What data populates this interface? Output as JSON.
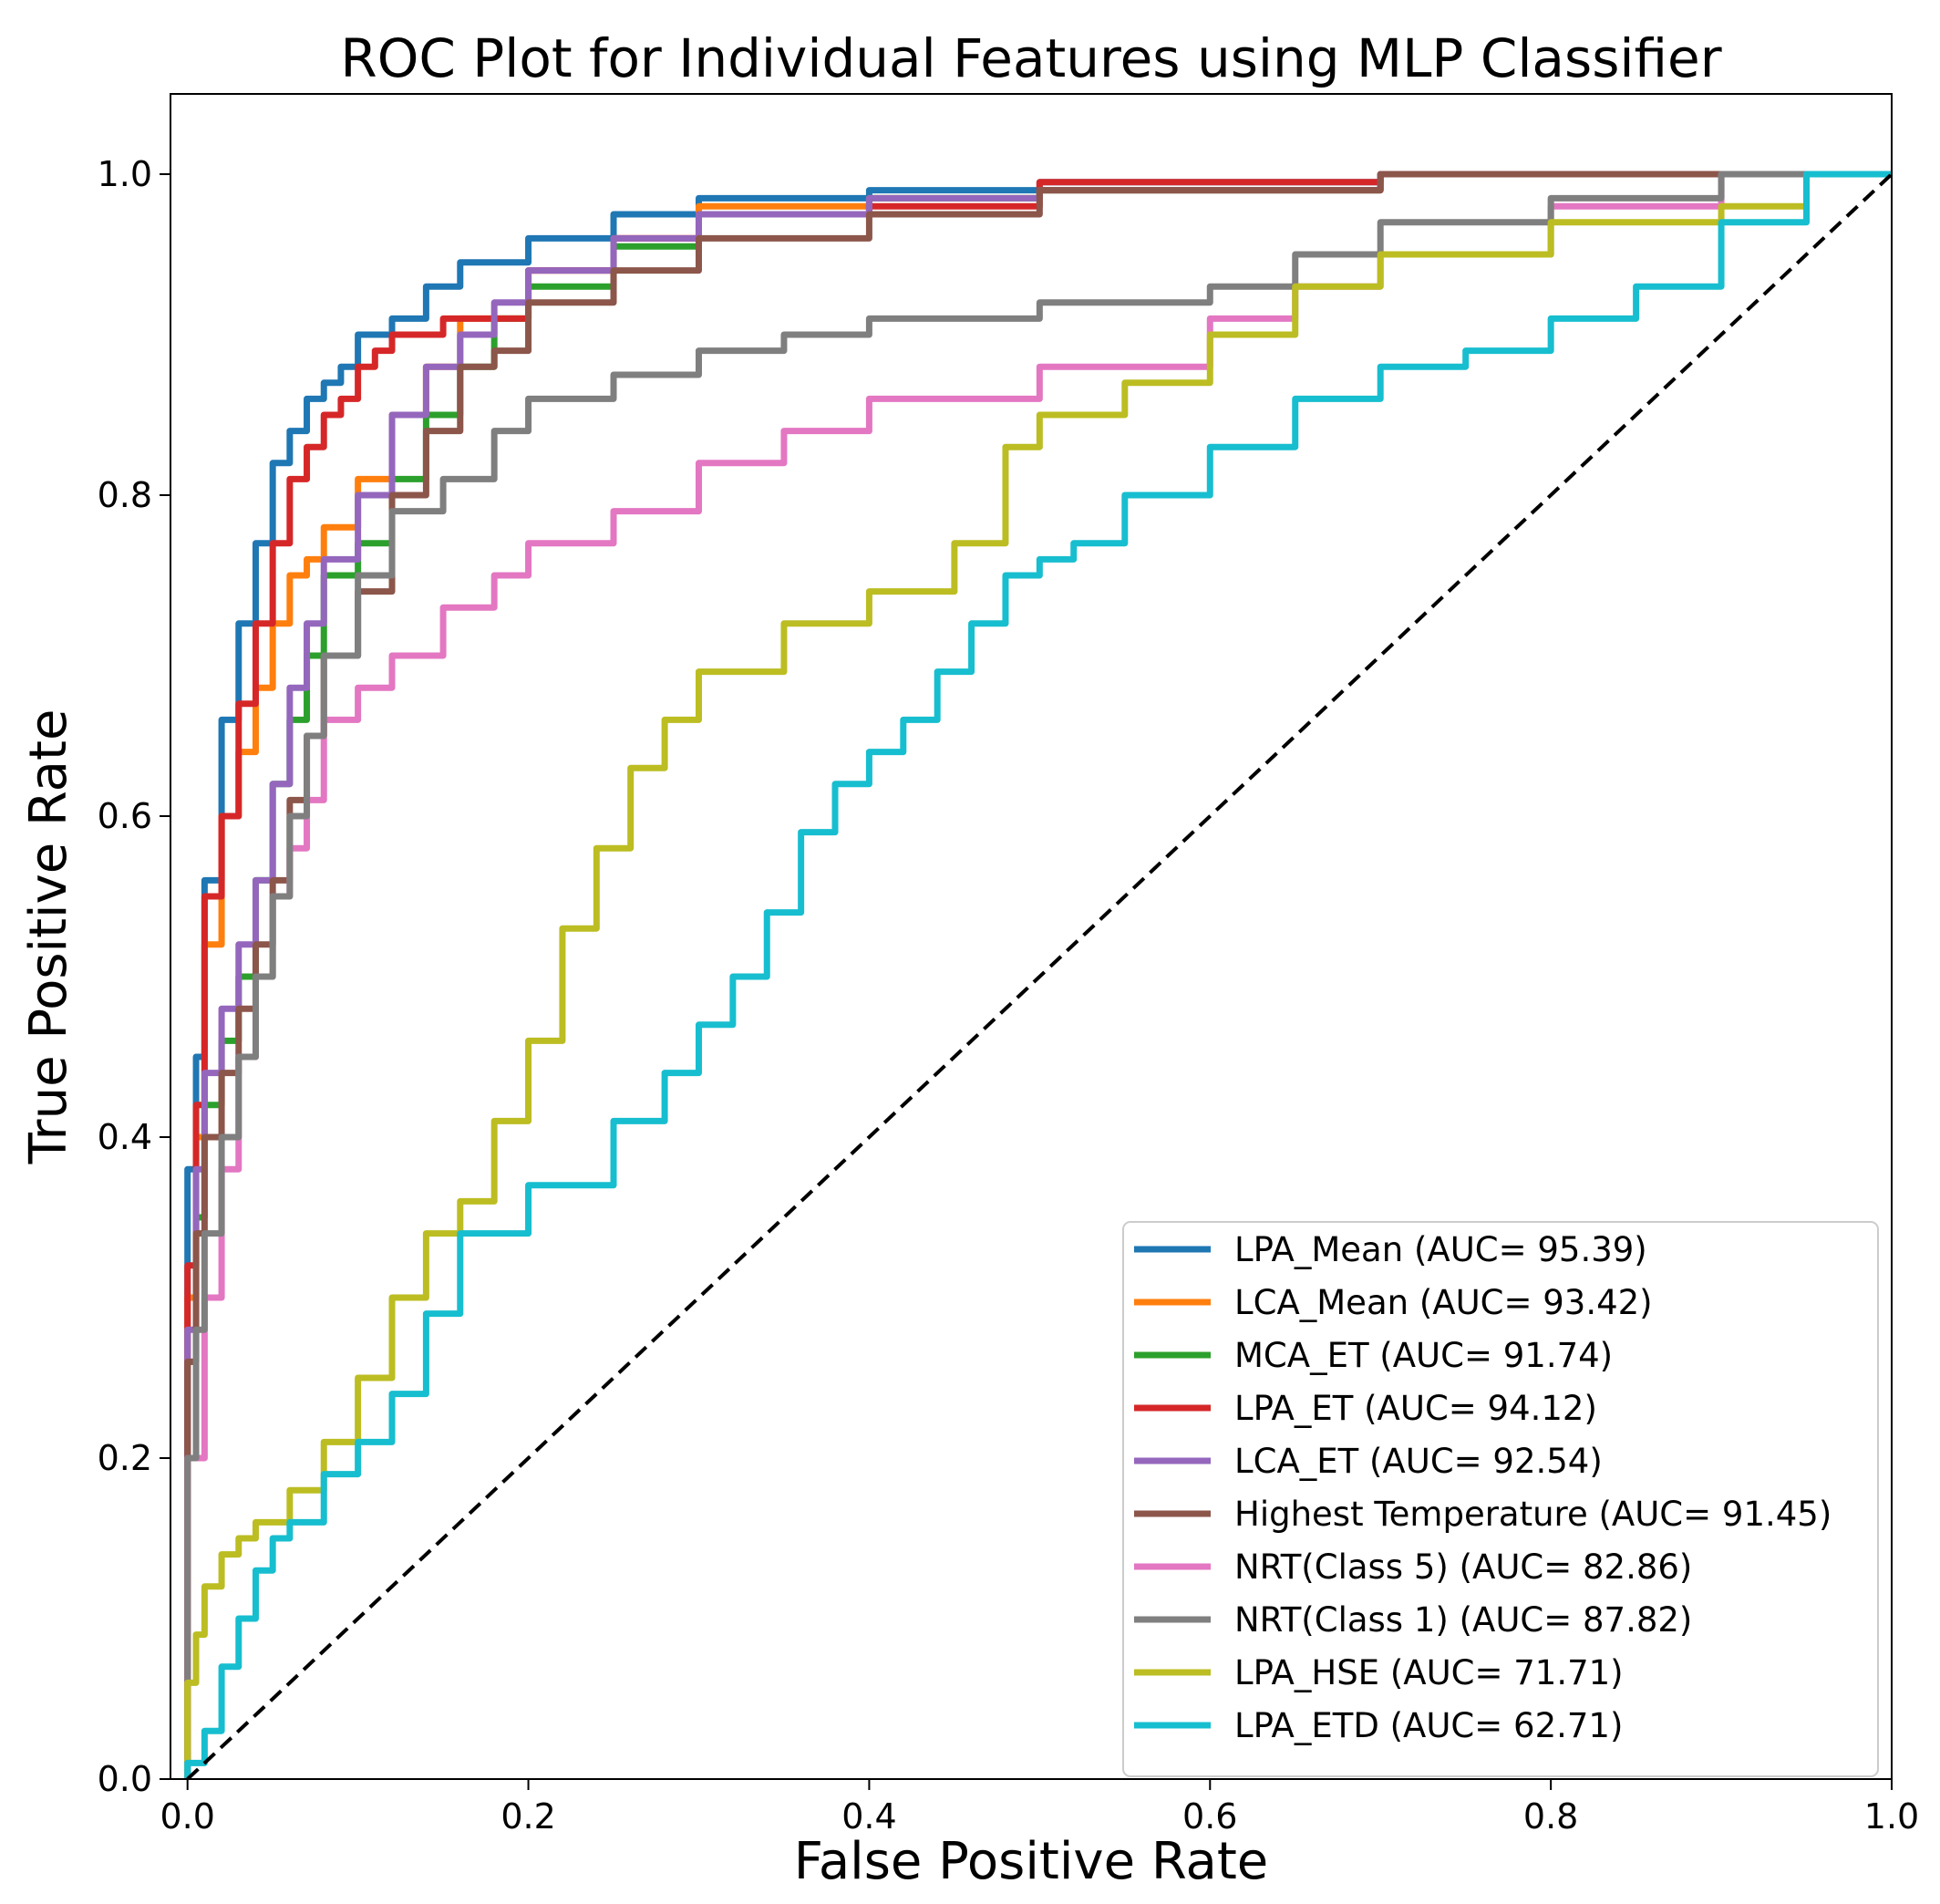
{
  "chart_data": {
    "type": "line",
    "title": "ROC Plot for Individual Features using MLP Classifier",
    "xlabel": "False Positive Rate",
    "ylabel": "True Positive Rate",
    "xlim": [
      -0.01,
      1.0
    ],
    "ylim": [
      0.0,
      1.05
    ],
    "xticks": [
      0.0,
      0.2,
      0.4,
      0.6,
      0.8,
      1.0
    ],
    "xtick_labels": [
      "0.0",
      "0.2",
      "0.4",
      "0.6",
      "0.8",
      "1.0"
    ],
    "yticks": [
      0.0,
      0.2,
      0.4,
      0.6,
      0.8,
      1.0
    ],
    "ytick_labels": [
      "0.0",
      "0.2",
      "0.4",
      "0.6",
      "0.8",
      "1.0"
    ],
    "grid": false,
    "legend_position": "bottom-right",
    "baseline": {
      "name": "chance",
      "x": [
        0,
        1
      ],
      "y": [
        0,
        1
      ],
      "style": "dashed",
      "color": "#000000"
    },
    "series": [
      {
        "name": "LPA_Mean",
        "label": "LPA_Mean (AUC= 95.39)",
        "auc": 95.39,
        "color": "#1f77b4",
        "x": [
          0,
          0,
          0.005,
          0.01,
          0.02,
          0.03,
          0.04,
          0.05,
          0.06,
          0.07,
          0.08,
          0.09,
          0.1,
          0.12,
          0.14,
          0.16,
          0.2,
          0.25,
          0.3,
          0.4,
          0.5,
          0.7,
          1.0
        ],
        "y": [
          0,
          0.26,
          0.38,
          0.45,
          0.56,
          0.66,
          0.72,
          0.77,
          0.82,
          0.84,
          0.86,
          0.87,
          0.88,
          0.9,
          0.91,
          0.93,
          0.945,
          0.96,
          0.975,
          0.985,
          0.99,
          0.995,
          1.0
        ]
      },
      {
        "name": "LCA_Mean",
        "label": "LCA_Mean (AUC= 93.42)",
        "auc": 93.42,
        "color": "#ff7f0e",
        "x": [
          0,
          0,
          0.005,
          0.01,
          0.02,
          0.03,
          0.04,
          0.05,
          0.06,
          0.07,
          0.08,
          0.1,
          0.12,
          0.14,
          0.16,
          0.2,
          0.25,
          0.3,
          0.4,
          0.5,
          0.7,
          1.0
        ],
        "y": [
          0,
          0.2,
          0.3,
          0.4,
          0.52,
          0.6,
          0.64,
          0.68,
          0.72,
          0.75,
          0.76,
          0.78,
          0.81,
          0.85,
          0.88,
          0.91,
          0.94,
          0.96,
          0.98,
          0.985,
          0.99,
          1.0
        ]
      },
      {
        "name": "MCA_ET",
        "label": "MCA_ET (AUC= 91.74)",
        "auc": 91.74,
        "color": "#2ca02c",
        "x": [
          0,
          0,
          0.005,
          0.01,
          0.02,
          0.03,
          0.04,
          0.05,
          0.06,
          0.07,
          0.08,
          0.1,
          0.12,
          0.14,
          0.16,
          0.18,
          0.2,
          0.25,
          0.3,
          0.4,
          0.5,
          0.7,
          1.0
        ],
        "y": [
          0,
          0.15,
          0.26,
          0.35,
          0.42,
          0.46,
          0.5,
          0.56,
          0.62,
          0.66,
          0.7,
          0.75,
          0.77,
          0.81,
          0.85,
          0.88,
          0.91,
          0.93,
          0.955,
          0.975,
          0.985,
          0.99,
          1.0
        ]
      },
      {
        "name": "LPA_ET",
        "label": "LPA_ET (AUC= 94.12)",
        "auc": 94.12,
        "color": "#d62728",
        "x": [
          0,
          0,
          0.005,
          0.01,
          0.02,
          0.03,
          0.04,
          0.05,
          0.06,
          0.07,
          0.08,
          0.09,
          0.1,
          0.11,
          0.12,
          0.15,
          0.2,
          0.25,
          0.3,
          0.4,
          0.5,
          0.7,
          1.0
        ],
        "y": [
          0,
          0.22,
          0.32,
          0.42,
          0.55,
          0.6,
          0.67,
          0.72,
          0.77,
          0.81,
          0.83,
          0.85,
          0.86,
          0.88,
          0.89,
          0.9,
          0.91,
          0.94,
          0.96,
          0.975,
          0.98,
          0.995,
          1.0
        ]
      },
      {
        "name": "LCA_ET",
        "label": "LCA_ET (AUC= 92.54)",
        "auc": 92.54,
        "color": "#9467bd",
        "x": [
          0,
          0,
          0.005,
          0.01,
          0.02,
          0.03,
          0.04,
          0.05,
          0.06,
          0.07,
          0.08,
          0.1,
          0.12,
          0.14,
          0.16,
          0.18,
          0.2,
          0.25,
          0.3,
          0.4,
          0.5,
          0.7,
          1.0
        ],
        "y": [
          0,
          0.15,
          0.28,
          0.38,
          0.44,
          0.48,
          0.52,
          0.56,
          0.62,
          0.68,
          0.72,
          0.76,
          0.8,
          0.85,
          0.88,
          0.9,
          0.92,
          0.94,
          0.96,
          0.975,
          0.985,
          0.99,
          1.0
        ]
      },
      {
        "name": "Highest Temperature",
        "label": "Highest Temperature (AUC= 91.45)",
        "auc": 91.45,
        "color": "#8c564b",
        "x": [
          0,
          0,
          0.005,
          0.01,
          0.02,
          0.03,
          0.04,
          0.05,
          0.06,
          0.07,
          0.08,
          0.1,
          0.12,
          0.14,
          0.16,
          0.18,
          0.2,
          0.25,
          0.3,
          0.4,
          0.5,
          0.7,
          1.0
        ],
        "y": [
          0,
          0.12,
          0.26,
          0.34,
          0.4,
          0.44,
          0.48,
          0.52,
          0.56,
          0.61,
          0.65,
          0.7,
          0.74,
          0.8,
          0.84,
          0.88,
          0.89,
          0.92,
          0.94,
          0.96,
          0.975,
          0.99,
          1.0
        ]
      },
      {
        "name": "NRT(Class 5)",
        "label": "NRT(Class 5) (AUC= 82.86)",
        "auc": 82.86,
        "color": "#e377c2",
        "x": [
          0,
          0,
          0.01,
          0.02,
          0.03,
          0.04,
          0.05,
          0.06,
          0.07,
          0.08,
          0.1,
          0.12,
          0.15,
          0.18,
          0.2,
          0.25,
          0.3,
          0.35,
          0.4,
          0.5,
          0.6,
          0.65,
          0.7,
          0.8,
          0.9,
          1.0
        ],
        "y": [
          0,
          0.1,
          0.2,
          0.3,
          0.38,
          0.45,
          0.5,
          0.55,
          0.58,
          0.61,
          0.66,
          0.68,
          0.7,
          0.73,
          0.75,
          0.77,
          0.79,
          0.82,
          0.84,
          0.86,
          0.88,
          0.91,
          0.93,
          0.95,
          0.98,
          1.0
        ]
      },
      {
        "name": "NRT(Class 1)",
        "label": "NRT(Class 1) (AUC= 87.82)",
        "auc": 87.82,
        "color": "#7f7f7f",
        "x": [
          0,
          0,
          0.005,
          0.01,
          0.02,
          0.03,
          0.04,
          0.05,
          0.06,
          0.07,
          0.08,
          0.1,
          0.12,
          0.15,
          0.18,
          0.2,
          0.25,
          0.3,
          0.35,
          0.4,
          0.5,
          0.6,
          0.65,
          0.7,
          0.8,
          0.9,
          1.0
        ],
        "y": [
          0,
          0.08,
          0.2,
          0.28,
          0.34,
          0.4,
          0.45,
          0.5,
          0.55,
          0.6,
          0.65,
          0.7,
          0.75,
          0.79,
          0.81,
          0.84,
          0.86,
          0.875,
          0.89,
          0.9,
          0.91,
          0.92,
          0.93,
          0.95,
          0.97,
          0.985,
          1.0
        ]
      },
      {
        "name": "LPA_HSE",
        "label": "LPA_HSE (AUC= 71.71)",
        "auc": 71.71,
        "color": "#bcbd22",
        "x": [
          0,
          0,
          0.005,
          0.01,
          0.02,
          0.03,
          0.04,
          0.05,
          0.06,
          0.08,
          0.1,
          0.12,
          0.14,
          0.16,
          0.18,
          0.2,
          0.22,
          0.24,
          0.26,
          0.28,
          0.3,
          0.35,
          0.4,
          0.45,
          0.48,
          0.5,
          0.55,
          0.6,
          0.65,
          0.7,
          0.8,
          0.9,
          0.95,
          1.0
        ],
        "y": [
          0,
          0.02,
          0.06,
          0.09,
          0.12,
          0.14,
          0.15,
          0.16,
          0.16,
          0.18,
          0.21,
          0.25,
          0.3,
          0.34,
          0.36,
          0.41,
          0.46,
          0.53,
          0.58,
          0.63,
          0.66,
          0.69,
          0.72,
          0.74,
          0.77,
          0.83,
          0.85,
          0.87,
          0.9,
          0.93,
          0.95,
          0.97,
          0.98,
          1.0
        ]
      },
      {
        "name": "LPA_ETD",
        "label": "LPA_ETD (AUC= 62.71)",
        "auc": 62.71,
        "color": "#17becf",
        "x": [
          0,
          0.01,
          0.02,
          0.03,
          0.04,
          0.05,
          0.06,
          0.08,
          0.1,
          0.12,
          0.14,
          0.16,
          0.18,
          0.2,
          0.25,
          0.28,
          0.3,
          0.32,
          0.34,
          0.36,
          0.38,
          0.4,
          0.42,
          0.44,
          0.46,
          0.48,
          0.5,
          0.52,
          0.55,
          0.6,
          0.65,
          0.7,
          0.75,
          0.8,
          0.85,
          0.9,
          0.95,
          1.0
        ],
        "y": [
          0,
          0.01,
          0.03,
          0.07,
          0.1,
          0.13,
          0.15,
          0.16,
          0.19,
          0.21,
          0.24,
          0.29,
          0.34,
          0.34,
          0.37,
          0.41,
          0.44,
          0.47,
          0.5,
          0.54,
          0.59,
          0.62,
          0.64,
          0.66,
          0.69,
          0.72,
          0.75,
          0.76,
          0.77,
          0.8,
          0.83,
          0.86,
          0.88,
          0.89,
          0.91,
          0.93,
          0.97,
          1.0
        ]
      }
    ]
  }
}
